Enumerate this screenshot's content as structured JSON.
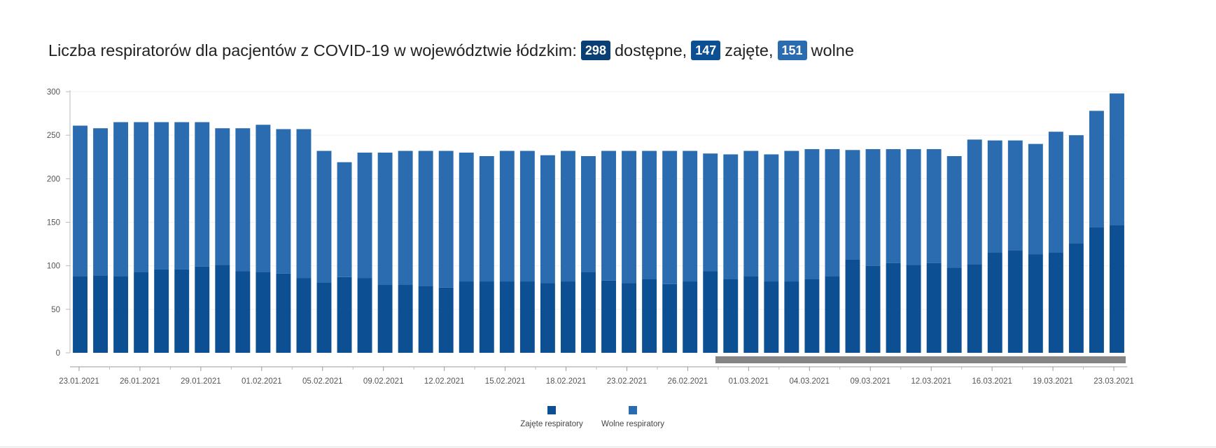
{
  "header": {
    "text_prefix": "Liczba respiratorów dla pacjentów z COVID-19 w województwie łódzkim:",
    "available_value": "298",
    "available_label": "dostępne,",
    "occupied_value": "147",
    "occupied_label": "zajęte,",
    "free_value": "151",
    "free_label": "wolne"
  },
  "chart_data": {
    "type": "bar",
    "stacked": true,
    "ylim": [
      0,
      300
    ],
    "yticks": [
      "0",
      "50",
      "100",
      "150",
      "200",
      "250",
      "300"
    ],
    "xtick_labels": [
      "23.01.2021",
      "26.01.2021",
      "29.01.2021",
      "01.02.2021",
      "05.02.2021",
      "09.02.2021",
      "12.02.2021",
      "15.02.2021",
      "18.02.2021",
      "23.02.2021",
      "26.02.2021",
      "01.03.2021",
      "04.03.2021",
      "09.03.2021",
      "12.03.2021",
      "16.03.2021",
      "19.03.2021",
      "23.03.2021"
    ],
    "series": [
      {
        "name": "Zajęte respiratory",
        "color": "#0c4f93",
        "values": [
          88,
          89,
          88,
          93,
          96,
          96,
          99,
          101,
          94,
          93,
          91,
          86,
          81,
          87,
          86,
          78,
          78,
          77,
          75,
          82,
          82,
          82,
          82,
          80,
          82,
          93,
          83,
          80,
          85,
          79,
          82,
          94,
          85,
          88,
          82,
          82,
          85,
          88,
          107,
          100,
          103,
          101,
          103,
          98,
          102,
          115,
          118,
          113,
          115,
          126,
          144,
          147
        ]
      },
      {
        "name": "Wolne respiratory",
        "color": "#2b6cb0",
        "values": [
          173,
          169,
          177,
          172,
          169,
          169,
          166,
          157,
          164,
          169,
          166,
          171,
          151,
          132,
          144,
          152,
          154,
          155,
          157,
          148,
          144,
          150,
          150,
          147,
          150,
          133,
          149,
          152,
          147,
          153,
          150,
          135,
          143,
          144,
          146,
          150,
          149,
          146,
          126,
          134,
          131,
          133,
          131,
          128,
          143,
          129,
          126,
          127,
          139,
          124,
          134,
          151
        ]
      }
    ],
    "legend_position": "bottom-center",
    "grid": true
  }
}
